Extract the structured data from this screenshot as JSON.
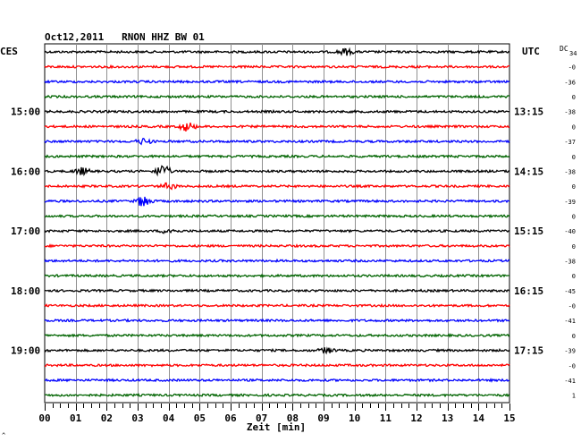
{
  "chart_data": {
    "type": "line",
    "title": "Oct12,2011   RNON HHZ BW 01",
    "left_header": "CES",
    "right_header": "UTC",
    "dc_header": "DC",
    "dc_header_value": "34",
    "xlabel": "Zeit [min]",
    "x_ticks": [
      "00",
      "01",
      "02",
      "03",
      "04",
      "05",
      "06",
      "07",
      "08",
      "09",
      "10",
      "11",
      "12",
      "13",
      "14",
      "15"
    ],
    "xlim": [
      0,
      15
    ],
    "left_hour_labels": [
      "15:00",
      "16:00",
      "17:00",
      "18:00",
      "19:00"
    ],
    "right_hour_labels": [
      "13:15",
      "14:15",
      "15:15",
      "16:15",
      "17:15"
    ],
    "trace_colors": [
      "#000000",
      "#ff0000",
      "#0000ff",
      "#006400"
    ],
    "dc_values": [
      "-0",
      "-36",
      "0",
      "-38",
      "0",
      "-37",
      "0",
      "-38",
      "0",
      "-39",
      "0",
      "-40",
      "0",
      "-38",
      "0",
      "-45",
      "-0",
      "-41",
      "0",
      "-39",
      "-0",
      "-41",
      "1"
    ],
    "events": [
      {
        "trace": 0,
        "minute": 9.7,
        "amp": 1.6
      },
      {
        "trace": 5,
        "minute": 4.6,
        "amp": 2.4
      },
      {
        "trace": 8,
        "minute": 1.2,
        "amp": 1.8
      },
      {
        "trace": 8,
        "minute": 3.8,
        "amp": 3.2
      },
      {
        "trace": 9,
        "minute": 4.0,
        "amp": 1.6
      },
      {
        "trace": 10,
        "minute": 3.2,
        "amp": 3.0
      },
      {
        "trace": 6,
        "minute": 3.2,
        "amp": 1.4
      },
      {
        "trace": 12,
        "minute": 4.0,
        "amp": 1.3
      },
      {
        "trace": 20,
        "minute": 9.1,
        "amp": 1.4
      }
    ],
    "footer_mark": "^"
  }
}
